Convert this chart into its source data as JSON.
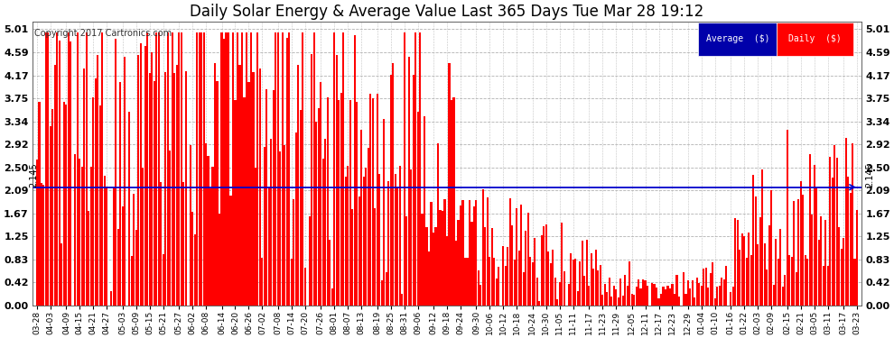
{
  "title": "Daily Solar Energy & Average Value Last 365 Days Tue Mar 28 19:12",
  "copyright": "Copyright 2017 Cartronics.com",
  "average_value": 2.145,
  "average_label": "2.145",
  "yticks": [
    0.0,
    0.42,
    0.83,
    1.25,
    1.67,
    2.09,
    2.5,
    2.92,
    3.34,
    3.75,
    4.17,
    4.59,
    5.01
  ],
  "bar_color": "#FF0000",
  "average_line_color": "#0000CC",
  "background_color": "#FFFFFF",
  "grid_color": "#AAAAAA",
  "title_fontsize": 12,
  "legend_avg_bg": "#0000AA",
  "legend_daily_bg": "#FF0000",
  "n_bars": 365,
  "ylim_max": 5.15,
  "x_labels": [
    "03-28",
    "04-03",
    "04-09",
    "04-15",
    "04-21",
    "04-27",
    "05-03",
    "05-09",
    "05-15",
    "05-21",
    "05-27",
    "06-02",
    "06-08",
    "06-14",
    "06-20",
    "06-26",
    "07-02",
    "07-08",
    "07-14",
    "07-20",
    "07-26",
    "08-01",
    "08-07",
    "08-13",
    "08-19",
    "08-25",
    "08-31",
    "09-06",
    "09-12",
    "09-18",
    "09-24",
    "09-30",
    "10-06",
    "10-12",
    "10-18",
    "10-24",
    "10-30",
    "11-05",
    "11-11",
    "11-17",
    "11-23",
    "11-29",
    "12-05",
    "12-11",
    "12-17",
    "12-23",
    "12-29",
    "01-04",
    "01-10",
    "01-16",
    "01-22",
    "02-03",
    "02-09",
    "02-15",
    "02-21",
    "03-05",
    "03-11",
    "03-17",
    "03-23"
  ]
}
